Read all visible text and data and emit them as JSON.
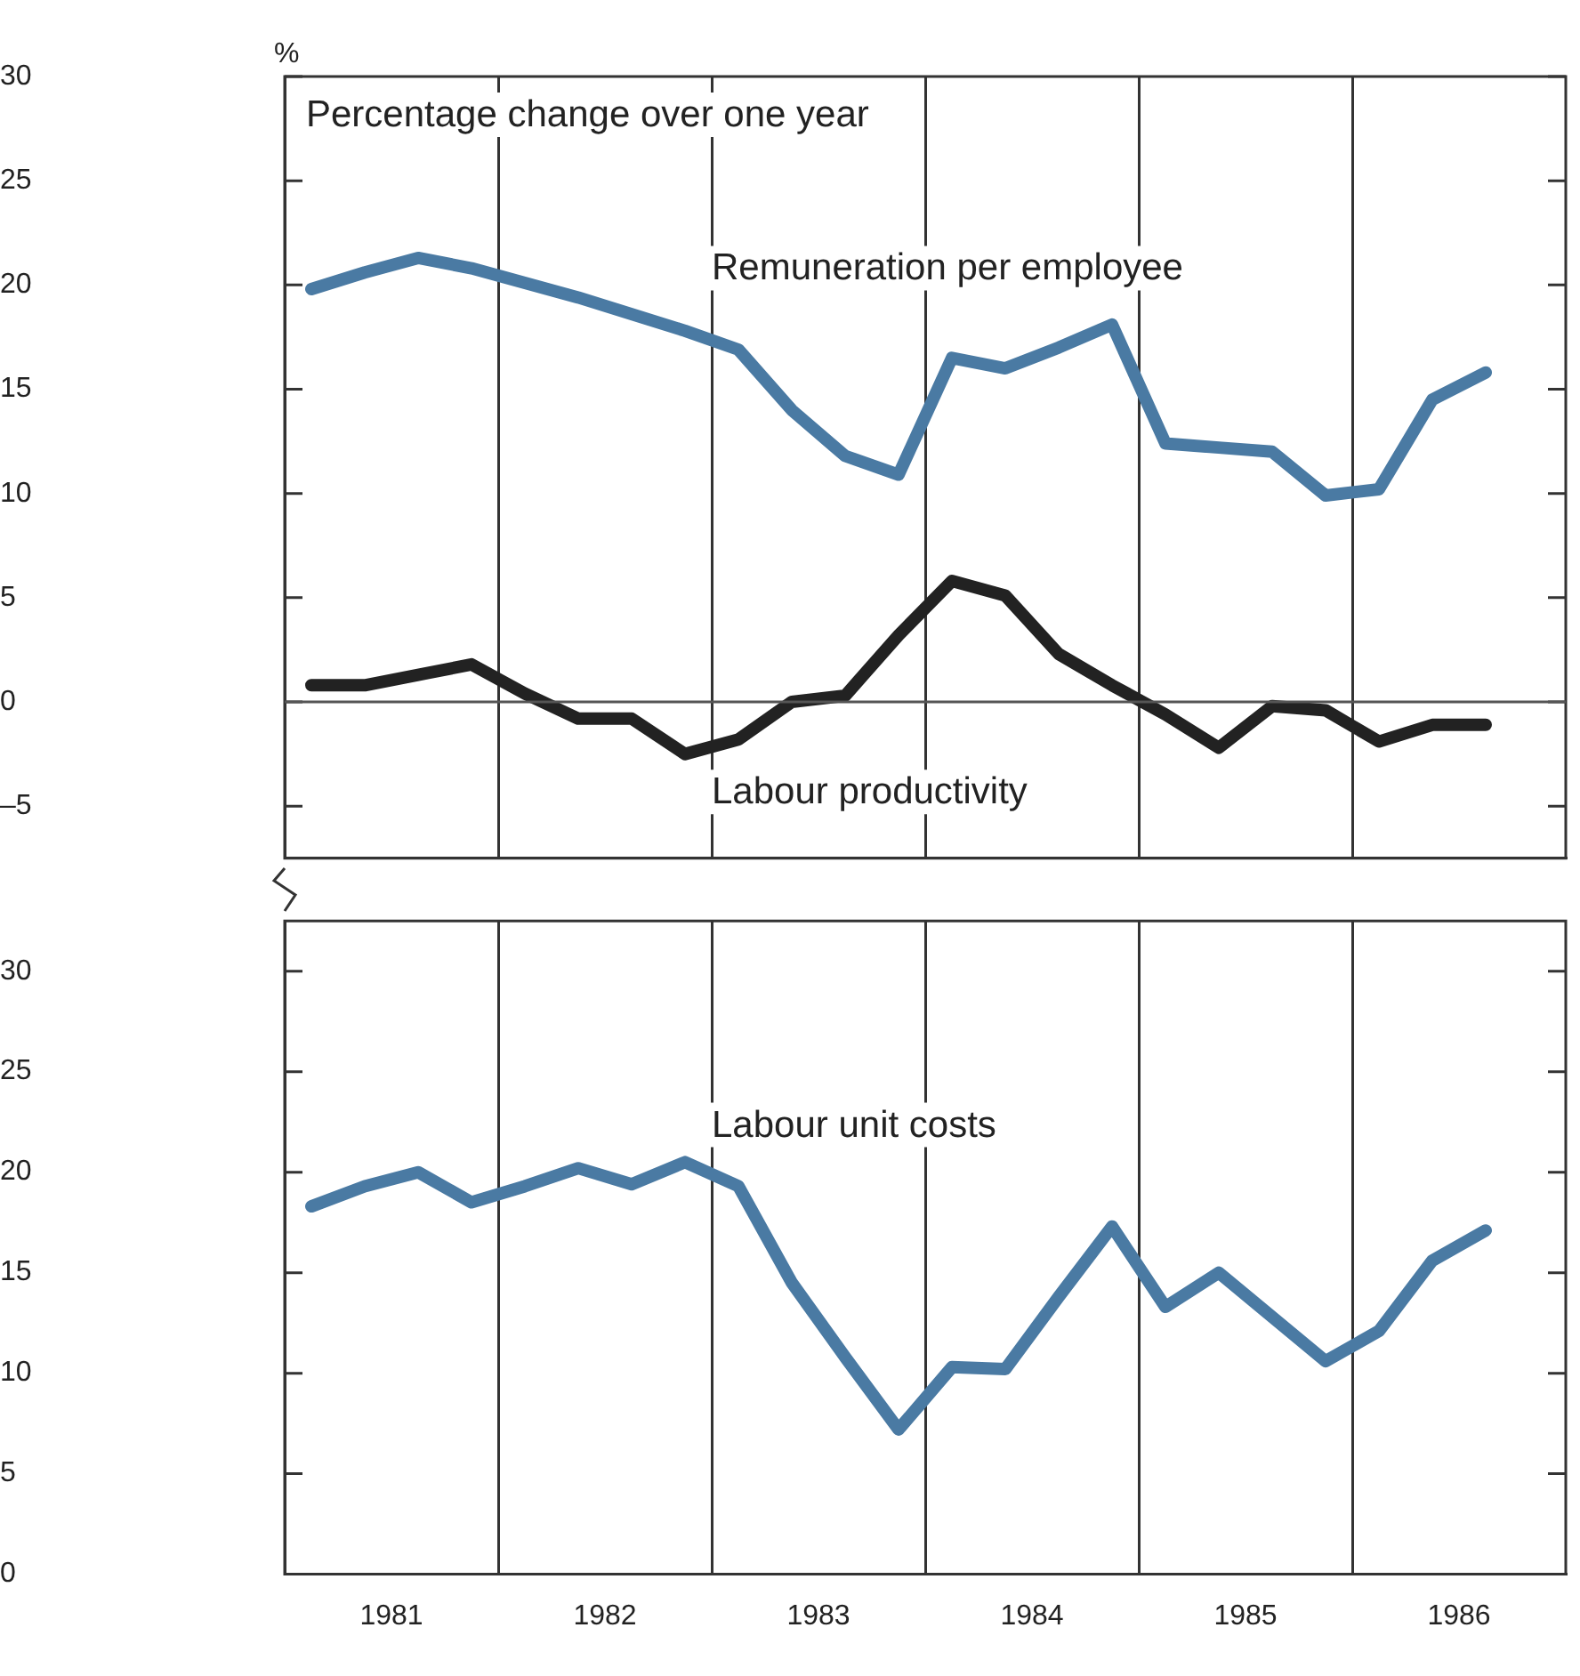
{
  "chart_data": [
    {
      "type": "line",
      "subtitle": "Percentage change over one year",
      "ylabel": "%",
      "x": [
        1981.125,
        1981.375,
        1981.625,
        1981.875,
        1982.125,
        1982.375,
        1982.625,
        1982.875,
        1983.125,
        1983.375,
        1983.625,
        1983.875,
        1984.125,
        1984.375,
        1984.625,
        1984.875,
        1985.125,
        1985.375,
        1985.625,
        1985.875,
        1986.125,
        1986.375,
        1986.625
      ],
      "series": [
        {
          "name": "Remuneration per employee",
          "color": "#4a7aa3",
          "values": [
            19.8,
            20.6,
            21.3,
            20.8,
            20.1,
            19.4,
            18.6,
            17.8,
            16.9,
            14.0,
            11.8,
            10.9,
            16.5,
            16.0,
            17.0,
            18.1,
            12.4,
            12.2,
            12.0,
            9.9,
            10.2,
            14.5,
            15.8
          ]
        },
        {
          "name": "Labour productivity",
          "color": "#222222",
          "values": [
            0.8,
            0.8,
            1.3,
            1.8,
            0.4,
            -0.8,
            -0.8,
            -2.5,
            -1.8,
            0,
            0.3,
            3.2,
            5.8,
            5.1,
            2.3,
            0.8,
            -0.6,
            -2.2,
            -0.2,
            -0.4,
            -1.9,
            -1.1,
            -1.1
          ]
        }
      ],
      "xlim": [
        1981,
        1987
      ],
      "xticks": [
        {
          "value": 1982,
          "label": null
        },
        {
          "value": 1983,
          "label": null
        },
        {
          "value": 1984,
          "label": null
        },
        {
          "value": 1985,
          "label": null
        },
        {
          "value": 1986,
          "label": null
        }
      ],
      "ylim": [
        -7.5,
        30
      ],
      "yticks": [
        {
          "value": -5,
          "label": "–5"
        },
        0,
        5,
        10,
        15,
        20,
        25,
        30
      ],
      "ref_lines": [
        {
          "axis": "y",
          "value": 0
        }
      ],
      "grid": "x",
      "tick_labels": "y",
      "legend": false
    },
    {
      "type": "line",
      "x": [
        1981.125,
        1981.375,
        1981.625,
        1981.875,
        1982.125,
        1982.375,
        1982.625,
        1982.875,
        1983.125,
        1983.375,
        1983.625,
        1983.875,
        1984.125,
        1984.375,
        1984.625,
        1984.875,
        1985.125,
        1985.375,
        1985.625,
        1985.875,
        1986.125,
        1986.375,
        1986.625
      ],
      "series": [
        {
          "name": "Labour unit costs",
          "color": "#4a7aa3",
          "values": [
            18.3,
            19.3,
            20.0,
            18.5,
            19.3,
            20.2,
            19.4,
            20.5,
            19.3,
            14.5,
            10.8,
            7.2,
            10.3,
            10.2,
            13.8,
            17.3,
            13.3,
            15.0,
            12.8,
            10.6,
            12.1,
            15.6,
            17.1
          ]
        }
      ],
      "xlim": [
        1981,
        1987
      ],
      "xticks": [
        {
          "value": 1981.5,
          "label": "1981"
        },
        {
          "value": 1982,
          "label": null
        },
        {
          "value": 1982.5,
          "label": "1982"
        },
        {
          "value": 1983,
          "label": null
        },
        {
          "value": 1983.5,
          "label": "1983"
        },
        {
          "value": 1984,
          "label": null
        },
        {
          "value": 1984.5,
          "label": "1984"
        },
        {
          "value": 1985,
          "label": null
        },
        {
          "value": 1985.5,
          "label": "1985"
        },
        {
          "value": 1986,
          "label": null
        },
        {
          "value": 1986.5,
          "label": "1986"
        }
      ],
      "ylim": [
        0,
        32.5
      ],
      "yticks": [
        0,
        5,
        10,
        15,
        20,
        25,
        30
      ],
      "grid": "x",
      "legend": false
    }
  ]
}
